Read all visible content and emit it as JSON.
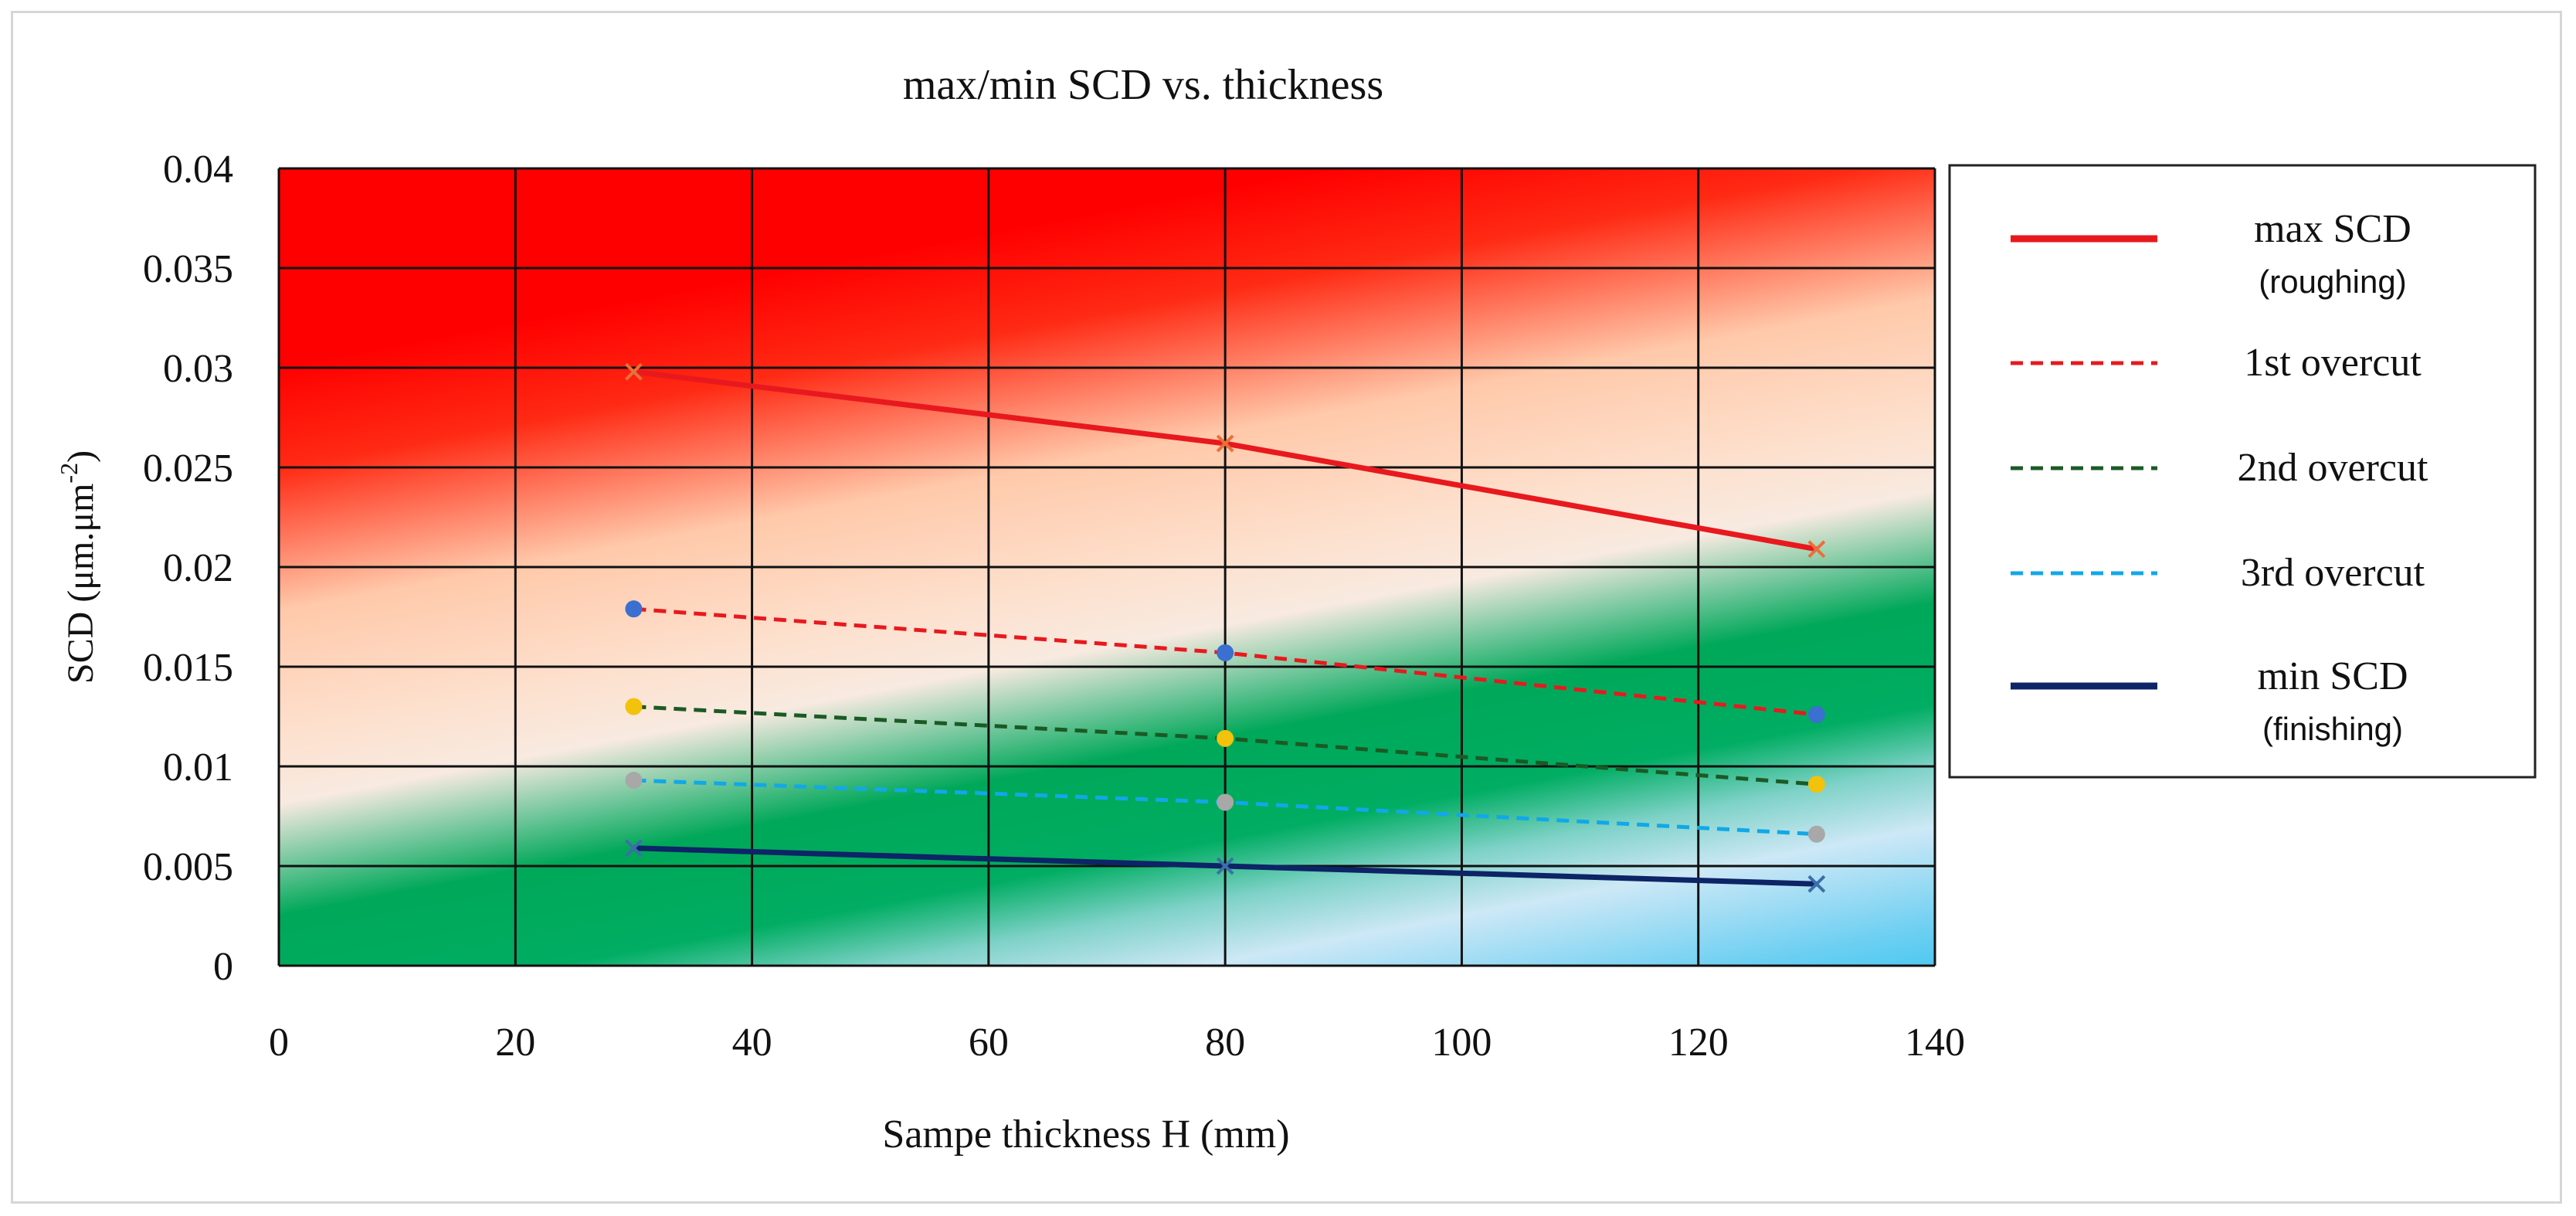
{
  "chart_data": {
    "type": "line",
    "title": "max/min SCD vs. thickness",
    "xlabel": "Sampe thickness  H (mm)",
    "ylabel_main": "SCD (μm.μm",
    "ylabel_exp": "-2",
    "ylabel_close": ")",
    "xlim": [
      0,
      140
    ],
    "ylim": [
      0,
      0.04
    ],
    "xticks": [
      0,
      20,
      40,
      60,
      80,
      100,
      120,
      140
    ],
    "xtick_labels": [
      "0",
      "20",
      "40",
      "60",
      "80",
      "100",
      "120",
      "140"
    ],
    "yticks": [
      0,
      0.005,
      0.01,
      0.015,
      0.02,
      0.025,
      0.03,
      0.035,
      0.04
    ],
    "ytick_labels": [
      "0",
      "0.005",
      "0.01",
      "0.015",
      "0.02",
      "0.025",
      "0.03",
      "0.035",
      "0.04"
    ],
    "grid": true,
    "legend_position": "right",
    "x": [
      30,
      80,
      130
    ],
    "series": [
      {
        "name": "max SCD",
        "sub": "(roughing)",
        "values": [
          0.0298,
          0.0262,
          0.0209
        ],
        "color": "#e8191e",
        "dash": "solid",
        "marker": "x",
        "marker_color": "#e8703a"
      },
      {
        "name": "1st overcut",
        "sub": "",
        "values": [
          0.0179,
          0.0157,
          0.0126
        ],
        "color": "#e8191e",
        "dash": "dashed",
        "marker": "dot",
        "marker_color": "#3b6fd0"
      },
      {
        "name": "2nd overcut",
        "sub": "",
        "values": [
          0.013,
          0.0114,
          0.0091
        ],
        "color": "#1b5a25",
        "dash": "dashed",
        "marker": "dot",
        "marker_color": "#f2c20c"
      },
      {
        "name": "3rd overcut",
        "sub": "",
        "values": [
          0.0093,
          0.0082,
          0.0066
        ],
        "color": "#11a8e8",
        "dash": "dashed",
        "marker": "dot",
        "marker_color": "#a8a8a8"
      },
      {
        "name": "min SCD",
        "sub": "(finishing)",
        "values": [
          0.0059,
          0.005,
          0.0041
        ],
        "color": "#0d2466",
        "dash": "solid",
        "marker": "x",
        "marker_color": "#3c6fa8"
      }
    ]
  }
}
